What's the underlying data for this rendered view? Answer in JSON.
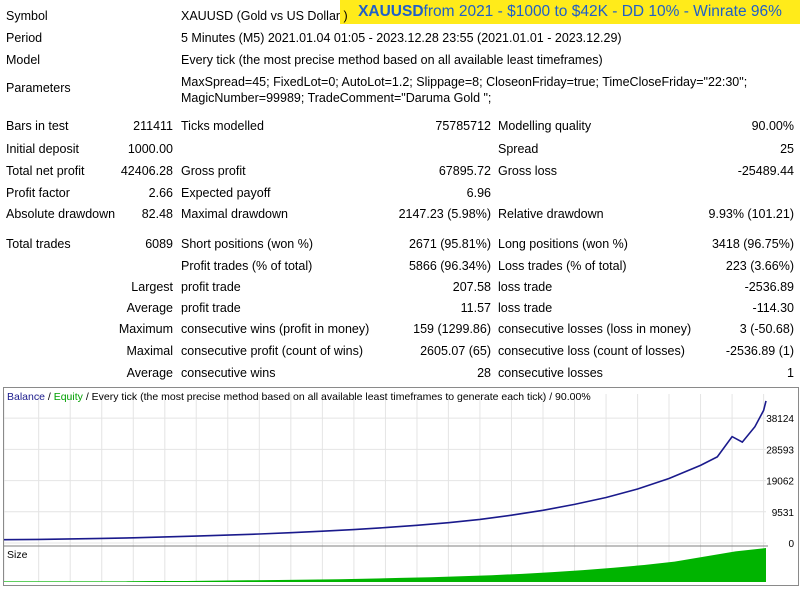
{
  "banner": {
    "symbol": "XAUUSD",
    "text": " from 2021 - $1000 to $42K - DD 10% - Winrate 96%"
  },
  "report": {
    "symbol_label": "Symbol",
    "symbol_value": "XAUUSD (Gold vs US Dollar )",
    "period_label": "Period",
    "period_value": "5 Minutes (M5) 2021.01.04 01:05 - 2023.12.28 23:55 (2021.01.01 - 2023.12.29)",
    "model_label": "Model",
    "model_value": "Every tick (the most precise method based on all available least timeframes)",
    "parameters_label": "Parameters",
    "parameters_line1": "MaxSpread=45; FixedLot=0; AutoLot=1.2; Slippage=8; CloseonFriday=true; TimeCloseFriday=\"22:30\";",
    "parameters_line2": "MagicNumber=99989; TradeComment=\"Daruma Gold \";",
    "bars_label": "Bars in test",
    "bars_value": "211411",
    "ticks_label": "Ticks modelled",
    "ticks_value": "75785712",
    "quality_label": "Modelling quality",
    "quality_value": "90.00%",
    "deposit_label": "Initial deposit",
    "deposit_value": "1000.00",
    "spread_label": "Spread",
    "spread_value": "25",
    "netprofit_label": "Total net profit",
    "netprofit_value": "42406.28",
    "grossprofit_label": "Gross profit",
    "grossprofit_value": "67895.72",
    "grossloss_label": "Gross loss",
    "grossloss_value": "-25489.44",
    "pf_label": "Profit factor",
    "pf_value": "2.66",
    "payoff_label": "Expected payoff",
    "payoff_value": "6.96",
    "absdd_label": "Absolute drawdown",
    "absdd_value": "82.48",
    "maxdd_label": "Maximal drawdown",
    "maxdd_value": "2147.23 (5.98%)",
    "reldd_label": "Relative drawdown",
    "reldd_value": "9.93% (101.21)",
    "trades_label": "Total trades",
    "trades_value": "6089",
    "short_label": "Short positions (won %)",
    "short_value": "2671 (95.81%)",
    "long_label": "Long positions (won %)",
    "long_value": "3418 (96.75%)",
    "pt_label": "Profit trades (% of total)",
    "pt_value": "5866 (96.34%)",
    "lt_label": "Loss trades (% of total)",
    "lt_value": "223 (3.66%)",
    "largest_prefix": "Largest",
    "largest_pt_label": "profit trade",
    "largest_pt_value": "207.58",
    "largest_lt_label": "loss trade",
    "largest_lt_value": "-2536.89",
    "average_prefix": "Average",
    "average_pt_label": "profit trade",
    "average_pt_value": "11.57",
    "average_lt_label": "loss trade",
    "average_lt_value": "-114.30",
    "maximum_prefix": "Maximum",
    "mcw_label": "consecutive wins (profit in money)",
    "mcw_value": "159 (1299.86)",
    "mcl_label": "consecutive losses (loss in money)",
    "mcl_value": "3 (-50.68)",
    "maximal_prefix": "Maximal",
    "mcp_label": "consecutive profit (count of wins)",
    "mcp_value": "2605.07 (65)",
    "mclc_label": "consecutive loss (count of losses)",
    "mclc_value": "-2536.89 (1)",
    "average2_prefix": "Average",
    "acw_label": "consecutive wins",
    "acw_value": "28",
    "acl_label": "consecutive losses",
    "acl_value": "1"
  },
  "chart_data": {
    "type": "line",
    "legend": {
      "balance": "Balance",
      "sep1": " / ",
      "equity": "Equity",
      "sep2": " / ",
      "rest": "Every tick (the most precise method based on all available least timeframes to generate each tick) / 90.00%"
    },
    "colors": {
      "balance": "#1a1a8c",
      "equity": "#00a000",
      "size": "#00b400"
    },
    "y_ticks": [
      "38124",
      "28593",
      "19062",
      "9531",
      "0"
    ],
    "y_tick_values": [
      38124,
      28593,
      19062,
      9531,
      0
    ],
    "ylim": [
      0,
      45500
    ],
    "x_ticks": [
      "0",
      "277",
      "529",
      "781",
      "1033",
      "1285",
      "1536",
      "1788",
      "2040",
      "2292",
      "2544",
      "2796",
      "3048",
      "3300",
      "3551",
      "3803",
      "4055",
      "4307",
      "4559",
      "4811",
      "5063",
      "5314",
      "5566",
      "5818",
      "6070"
    ],
    "xlim": [
      0,
      6089
    ],
    "size_label": "Size",
    "series": [
      {
        "name": "Balance",
        "x": [
          0,
          277,
          529,
          781,
          1033,
          1285,
          1536,
          1788,
          2040,
          2292,
          2544,
          2796,
          3048,
          3300,
          3551,
          3803,
          4055,
          4307,
          4559,
          4811,
          5063,
          5314,
          5566,
          5700,
          5818,
          5900,
          6000,
          6070,
          6089
        ],
        "y": [
          1000,
          1100,
          1250,
          1400,
          1600,
          1850,
          2100,
          2400,
          2750,
          3150,
          3600,
          4100,
          4700,
          5400,
          6200,
          7200,
          8500,
          10000,
          11800,
          13900,
          16500,
          19700,
          23700,
          26300,
          32500,
          30800,
          35500,
          40500,
          43406
        ]
      }
    ],
    "size_fill": [
      0.02,
      0.02,
      0.02,
      0.02,
      0.02,
      0.03,
      0.03,
      0.04,
      0.05,
      0.06,
      0.07,
      0.08,
      0.1,
      0.12,
      0.14,
      0.17,
      0.2,
      0.24,
      0.29,
      0.35,
      0.42,
      0.5,
      0.6,
      0.75,
      0.9,
      1.0
    ]
  }
}
